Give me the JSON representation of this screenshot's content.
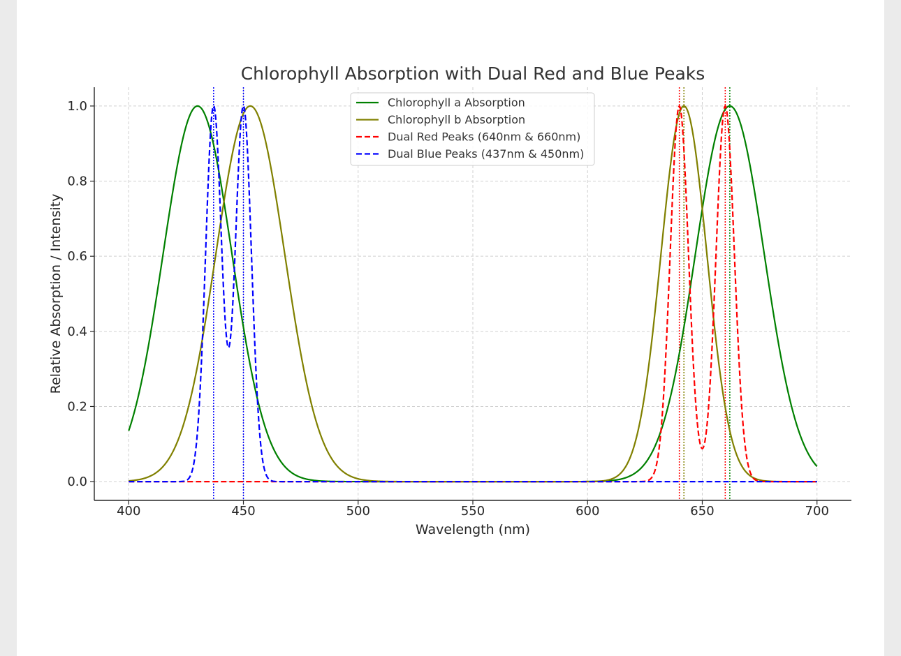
{
  "chart_data": {
    "type": "line",
    "title": "Chlorophyll Absorption with Dual Red and Blue Peaks",
    "xlabel": "Wavelength (nm)",
    "ylabel": "Relative Absorption / Intensity",
    "xlim": [
      385,
      715
    ],
    "ylim": [
      -0.05,
      1.05
    ],
    "x_ticks": [
      400,
      450,
      500,
      550,
      600,
      650,
      700
    ],
    "x_tick_labels": [
      "400",
      "450",
      "500",
      "550",
      "600",
      "650",
      "700"
    ],
    "y_ticks": [
      0.0,
      0.2,
      0.4,
      0.6,
      0.8,
      1.0
    ],
    "y_tick_labels": [
      "0.0",
      "0.2",
      "0.4",
      "0.6",
      "0.8",
      "1.0"
    ],
    "grid": true,
    "legend_position": "top-center",
    "x_range": [
      400,
      700
    ],
    "series": [
      {
        "name": "Chlorophyll a Absorption",
        "color": "#008000",
        "style": "solid",
        "components": [
          {
            "center": 430,
            "amplitude": 1.0,
            "sigma": 15
          },
          {
            "center": 662,
            "amplitude": 1.0,
            "sigma": 15
          }
        ]
      },
      {
        "name": "Chlorophyll b Absorption",
        "color": "#808000",
        "style": "solid",
        "components": [
          {
            "center": 453,
            "amplitude": 1.0,
            "sigma": 15
          },
          {
            "center": 642,
            "amplitude": 1.0,
            "sigma": 10
          }
        ]
      },
      {
        "name": "Dual Red Peaks (640nm & 660nm)",
        "color": "#ff0000",
        "style": "dashed",
        "components": [
          {
            "center": 640,
            "amplitude": 1.0,
            "sigma": 4
          },
          {
            "center": 660,
            "amplitude": 1.0,
            "sigma": 4
          }
        ]
      },
      {
        "name": "Dual Blue Peaks (437nm & 450nm)",
        "color": "#0000ff",
        "style": "dashed",
        "components": [
          {
            "center": 437,
            "amplitude": 1.0,
            "sigma": 3.5
          },
          {
            "center": 450,
            "amplitude": 1.0,
            "sigma": 3.5
          }
        ]
      }
    ],
    "vertical_lines": [
      {
        "x": 437,
        "color": "#0000ff"
      },
      {
        "x": 450,
        "color": "#0000ff"
      },
      {
        "x": 640,
        "color": "#ff0000"
      },
      {
        "x": 642,
        "color": "#808000"
      },
      {
        "x": 660,
        "color": "#ff0000"
      },
      {
        "x": 662,
        "color": "#008000"
      }
    ]
  }
}
